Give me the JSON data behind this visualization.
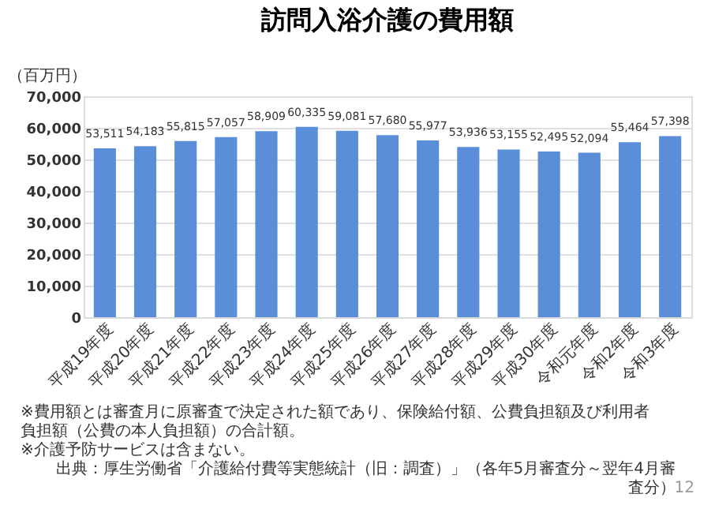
{
  "chart_data": {
    "type": "bar",
    "title": "訪問入浴介護の費用額",
    "ylabel": "（百万円）",
    "categories": [
      "平成19年度",
      "平成20年度",
      "平成21年度",
      "平成22年度",
      "平成23年度",
      "平成24年度",
      "平成25年度",
      "平成26年度",
      "平成27年度",
      "平成28年度",
      "平成29年度",
      "平成30年度",
      "令和元年度",
      "令和2年度",
      "令和3年度"
    ],
    "values": [
      53511,
      54183,
      55815,
      57057,
      58909,
      60335,
      59081,
      57680,
      55977,
      53936,
      53155,
      52495,
      52094,
      55464,
      57398
    ],
    "value_labels": [
      "53,511",
      "54,183",
      "55,815",
      "57,057",
      "58,909",
      "60,335",
      "59,081",
      "57,680",
      "55,977",
      "53,936",
      "53,155",
      "52,495",
      "52,094",
      "55,464",
      "57,398"
    ],
    "color": "#5a8ed8",
    "ylim": [
      0,
      70000
    ],
    "yticks": [
      0,
      {
        "value": 10000,
        "label": "10,000"
      },
      {
        "value": 20000,
        "label": "20,000"
      },
      {
        "value": 30000,
        "label": "30,000"
      },
      {
        "value": 40000,
        "label": "40,000"
      },
      {
        "value": 50000,
        "label": "50,000"
      },
      {
        "value": 60000,
        "label": "60,000"
      },
      {
        "value": 70000,
        "label": "70,000"
      }
    ],
    "grid": "y",
    "annotations": [
      "※費用額とは審査月に原審査で決定された額であり、保険給付額、公費負担額及び利用者負担額（公費の本人負担額）の合計額。",
      "※介護予防サービスは含まない。",
      "出典：厚生労働省「介護給付費等実態統計（旧：調査）」（各年5月審査分～翌年4月審査分）",
      "12"
    ]
  }
}
